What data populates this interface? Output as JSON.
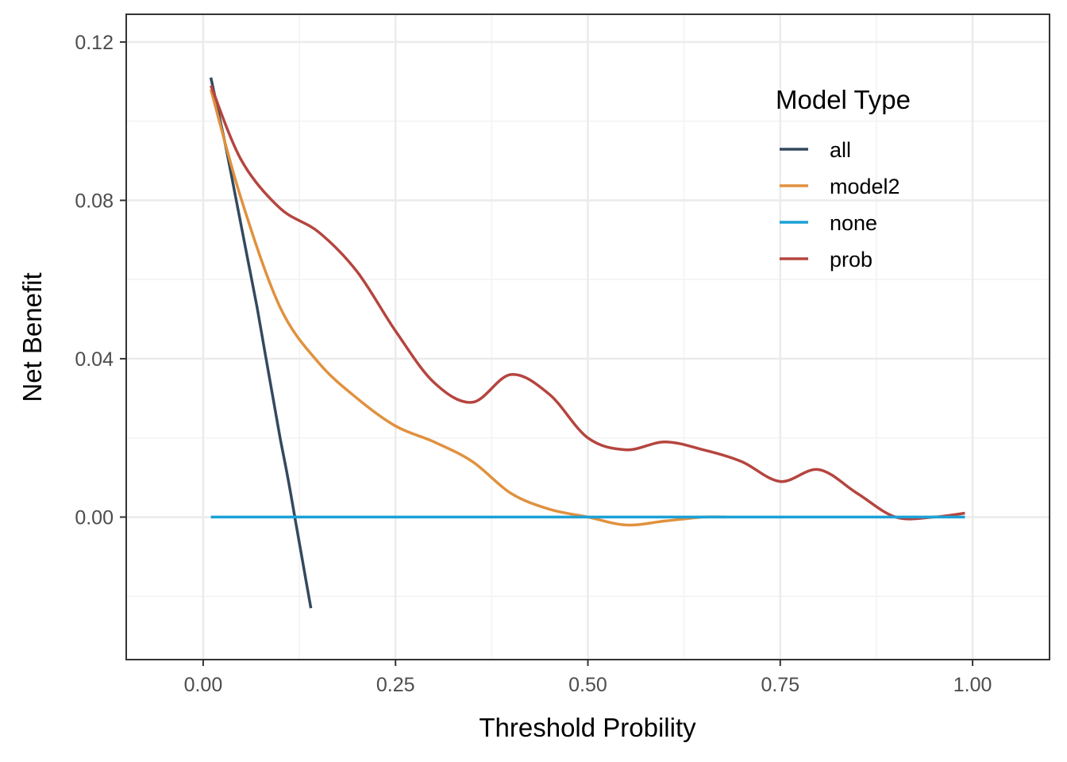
{
  "chart_data": {
    "type": "line",
    "title": "",
    "xlabel": "Threshold Probility",
    "ylabel": "Net Benefit",
    "xlim": [
      -0.1,
      1.1
    ],
    "ylim": [
      -0.036,
      0.127
    ],
    "x_ticks": [
      0.0,
      0.25,
      0.5,
      0.75,
      1.0
    ],
    "x_tick_labels": [
      "0.00",
      "0.25",
      "0.50",
      "0.75",
      "1.00"
    ],
    "y_ticks": [
      0.0,
      0.04,
      0.08,
      0.12
    ],
    "y_tick_labels": [
      "0.00",
      "0.04",
      "0.08",
      "0.12"
    ],
    "grid": true,
    "legend": {
      "title": "Model Type",
      "position": "top-right"
    },
    "series": [
      {
        "name": "all",
        "color": "#34495e",
        "x": [
          0.01,
          0.02,
          0.03,
          0.04,
          0.05,
          0.06,
          0.07,
          0.08,
          0.09,
          0.1,
          0.11,
          0.12,
          0.13,
          0.14
        ],
        "y": [
          0.111,
          0.102,
          0.093,
          0.083,
          0.073,
          0.063,
          0.053,
          0.042,
          0.031,
          0.02,
          0.01,
          -0.001,
          -0.012,
          -0.023
        ]
      },
      {
        "name": "model2",
        "color": "#e0913e",
        "x": [
          0.01,
          0.05,
          0.1,
          0.15,
          0.2,
          0.25,
          0.3,
          0.35,
          0.4,
          0.45,
          0.5,
          0.55,
          0.6,
          0.65,
          0.68
        ],
        "y": [
          0.108,
          0.08,
          0.053,
          0.039,
          0.03,
          0.023,
          0.019,
          0.014,
          0.006,
          0.002,
          0.0,
          -0.002,
          -0.001,
          0.0,
          0.0
        ]
      },
      {
        "name": "none",
        "color": "#1ba1d6",
        "x": [
          0.01,
          0.99
        ],
        "y": [
          0.0,
          0.0
        ]
      },
      {
        "name": "prob",
        "color": "#b5453f",
        "x": [
          0.01,
          0.05,
          0.1,
          0.15,
          0.2,
          0.25,
          0.3,
          0.35,
          0.4,
          0.45,
          0.5,
          0.55,
          0.6,
          0.65,
          0.7,
          0.75,
          0.8,
          0.85,
          0.9,
          0.95,
          0.99
        ],
        "y": [
          0.109,
          0.09,
          0.078,
          0.072,
          0.062,
          0.047,
          0.034,
          0.029,
          0.036,
          0.031,
          0.02,
          0.017,
          0.019,
          0.017,
          0.014,
          0.009,
          0.012,
          0.006,
          0.0,
          0.0,
          0.001
        ]
      }
    ]
  }
}
